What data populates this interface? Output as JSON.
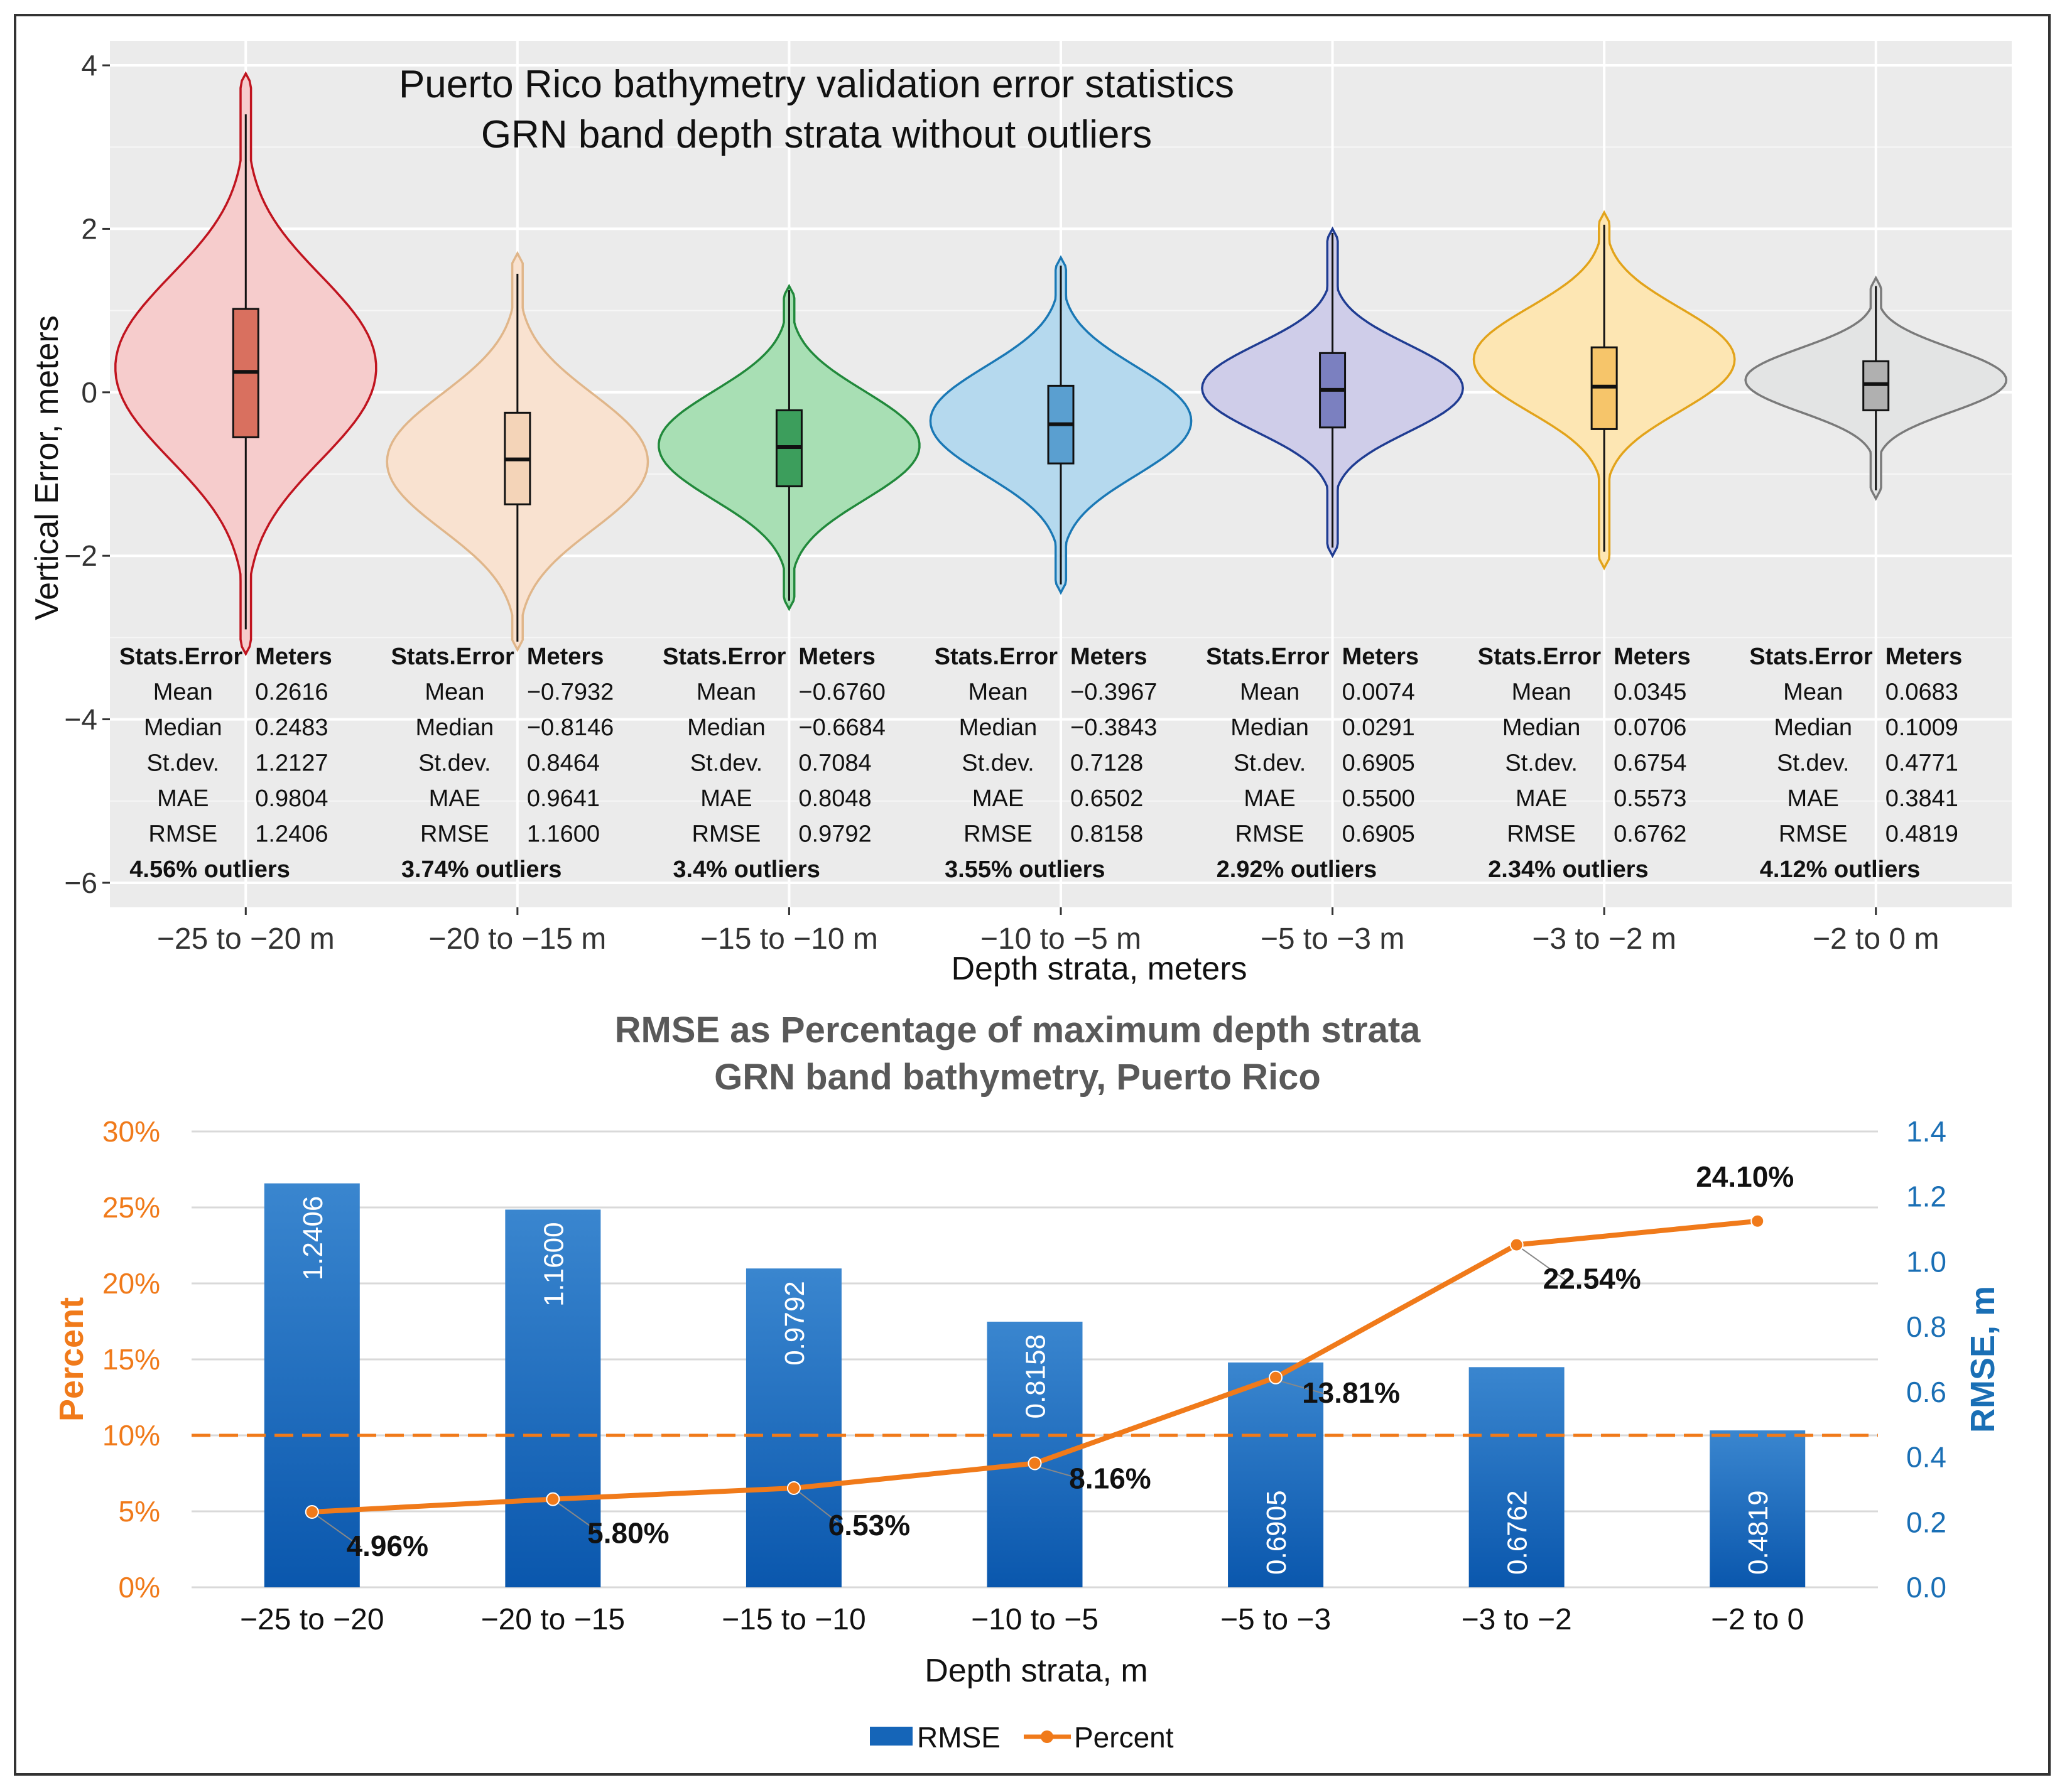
{
  "chart_data": [
    {
      "type": "violin",
      "title": [
        "Puerto Rico bathymetry validation error statistics",
        "GRN band depth strata without outliers"
      ],
      "xlabel": "Depth strata, meters",
      "ylabel": "Vertical Error, meters",
      "ylim": [
        -6.3,
        4.3
      ],
      "yticks": [
        4,
        2,
        0,
        -2,
        -4,
        -6
      ],
      "ytick_labels": [
        "4",
        "2",
        "0",
        "−2",
        "−4",
        "−6"
      ],
      "grid": true,
      "stats_header": [
        "Stats.Error",
        "Meters"
      ],
      "stat_names": [
        "Mean",
        "Median",
        "St.dev.",
        "MAE",
        "RMSE"
      ],
      "strata": [
        {
          "label": "−25 to −20 m",
          "fill": "#f6cccc",
          "stroke": "#c0141f",
          "box_fill": "#d9705f",
          "min": -3.2,
          "max": 3.9,
          "whisker_low": -2.9,
          "whisker_high": 3.4,
          "q1": -0.55,
          "q3": 1.02,
          "median": 0.25,
          "peak": 0.3,
          "spread": 1.15,
          "stats": [
            "0.2616",
            "0.2483",
            "1.2127",
            "0.9804",
            "1.2406"
          ],
          "outliers": "4.56% outliers"
        },
        {
          "label": "−20 to −15 m",
          "fill": "#f9e2d0",
          "stroke": "#e0b68a",
          "box_fill": "#f4d4b8",
          "min": -3.15,
          "max": 1.7,
          "whisker_low": -3.05,
          "whisker_high": 1.45,
          "q1": -1.37,
          "q3": -0.25,
          "median": -0.82,
          "peak": -0.85,
          "spread": 0.85,
          "stats": [
            "−0.7932",
            "−0.8146",
            "0.8464",
            "0.9641",
            "1.1600"
          ],
          "outliers": "3.74% outliers"
        },
        {
          "label": "−15 to −10 m",
          "fill": "#a8dfb4",
          "stroke": "#21893b",
          "box_fill": "#3c9e5c",
          "min": -2.65,
          "max": 1.3,
          "whisker_low": -2.55,
          "whisker_high": 1.25,
          "q1": -1.15,
          "q3": -0.22,
          "median": -0.67,
          "peak": -0.65,
          "spread": 0.68,
          "stats": [
            "−0.6760",
            "−0.6684",
            "0.7084",
            "0.8048",
            "0.9792"
          ],
          "outliers": "3.4% outliers"
        },
        {
          "label": "−10 to −5 m",
          "fill": "#b5d9ee",
          "stroke": "#1a78b5",
          "box_fill": "#5a9fd0",
          "min": -2.45,
          "max": 1.65,
          "whisker_low": -2.35,
          "whisker_high": 1.55,
          "q1": -0.87,
          "q3": 0.08,
          "median": -0.39,
          "peak": -0.35,
          "spread": 0.68,
          "stats": [
            "−0.3967",
            "−0.3843",
            "0.7128",
            "0.6502",
            "0.8158"
          ],
          "outliers": "3.55% outliers"
        },
        {
          "label": "−5 to −3 m",
          "fill": "#cfcde9",
          "stroke": "#1f3c92",
          "box_fill": "#7b80c0",
          "min": -2.0,
          "max": 2.0,
          "whisker_low": -1.9,
          "whisker_high": 1.95,
          "q1": -0.43,
          "q3": 0.48,
          "median": 0.03,
          "peak": 0.05,
          "spread": 0.55,
          "stats": [
            "0.0074",
            "0.0291",
            "0.6905",
            "0.5500",
            "0.6905"
          ],
          "outliers": "2.92% outliers"
        },
        {
          "label": "−3 to −2 m",
          "fill": "#fde6b3",
          "stroke": "#e2a31a",
          "box_fill": "#f6c56a",
          "min": -2.15,
          "max": 2.2,
          "whisker_low": -1.95,
          "whisker_high": 2.05,
          "q1": -0.45,
          "q3": 0.55,
          "median": 0.07,
          "peak": 0.4,
          "spread": 0.65,
          "stats": [
            "0.0345",
            "0.0706",
            "0.6754",
            "0.5573",
            "0.6762"
          ],
          "outliers": "2.34% outliers"
        },
        {
          "label": "−2 to 0 m",
          "fill": "#e3e4e4",
          "stroke": "#7a7a7a",
          "box_fill": "#b0b0b0",
          "min": -1.3,
          "max": 1.4,
          "whisker_low": -1.2,
          "whisker_high": 1.3,
          "q1": -0.22,
          "q3": 0.38,
          "median": 0.1,
          "peak": 0.15,
          "spread": 0.4,
          "stats": [
            "0.0683",
            "0.1009",
            "0.4771",
            "0.3841",
            "0.4819"
          ],
          "outliers": "4.12% outliers"
        }
      ]
    },
    {
      "type": "bar+line",
      "title": [
        "RMSE as Percentage of maximum depth strata",
        "GRN band bathymetry, Puerto Rico"
      ],
      "xlabel": "Depth strata, m",
      "ylabel_left": "Percent",
      "ylabel_right": "RMSE, m",
      "categories": [
        "−25 to −20",
        "−20 to −15",
        "−15 to −10",
        "−10 to −5",
        "−5 to −3",
        "−3 to −2",
        "−2 to 0"
      ],
      "rmse": [
        1.2406,
        1.16,
        0.9792,
        0.8158,
        0.6905,
        0.6762,
        0.4819
      ],
      "rmse_labels": [
        "1.2406",
        "1.1600",
        "0.9792",
        "0.8158",
        "0.6905",
        "0.6762",
        "0.4819"
      ],
      "percent": [
        4.96,
        5.8,
        6.53,
        8.16,
        13.81,
        22.54,
        24.1
      ],
      "percent_labels": [
        "4.96%",
        "5.80%",
        "6.53%",
        "8.16%",
        "13.81%",
        "22.54%",
        "24.10%"
      ],
      "ylim_left": [
        0,
        30
      ],
      "left_ticks": [
        "0%",
        "5%",
        "10%",
        "15%",
        "20%",
        "25%",
        "30%"
      ],
      "ylim_right": [
        0,
        1.4
      ],
      "right_ticks": [
        "0.0",
        "0.2",
        "0.4",
        "0.6",
        "0.8",
        "1.0",
        "1.2",
        "1.4"
      ],
      "threshold_percent": 10,
      "legend": [
        "RMSE",
        "Percent"
      ],
      "colors": {
        "bar": "#1565b8",
        "line": "#f07a1a",
        "left_axis": "#f07a1a",
        "right_axis": "#1a6fb5"
      }
    }
  ]
}
